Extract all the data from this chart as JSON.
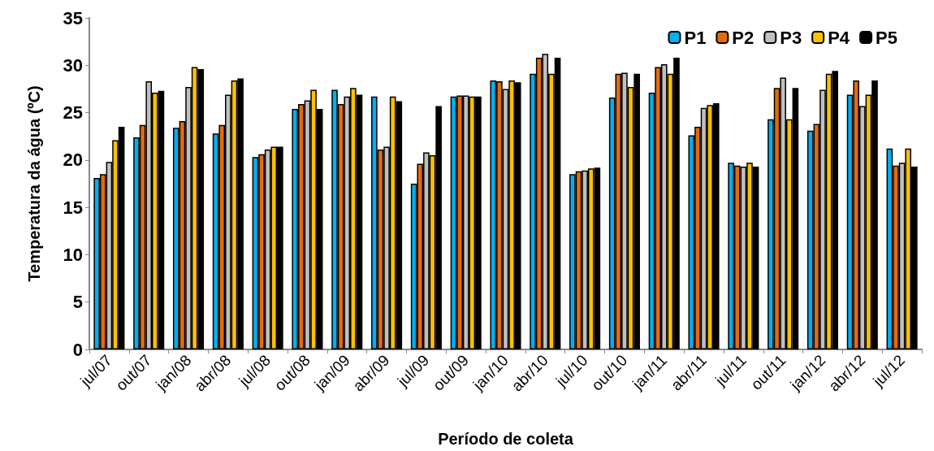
{
  "chart_data": {
    "type": "bar",
    "xlabel": "Período de coleta",
    "ylabel": "Temperatura da água (ºC)",
    "categories": [
      "jul/07",
      "out/07",
      "jan/08",
      "abr/08",
      "jul/08",
      "out/08",
      "jan/09",
      "abr/09",
      "jul/09",
      "out/09",
      "jan/10",
      "abr/10",
      "jul/10",
      "out/10",
      "jan/11",
      "abr/11",
      "jul/11",
      "out/11",
      "jan/12",
      "abr/12",
      "jul/12"
    ],
    "series": [
      {
        "name": "P1",
        "color": "#00b0f0",
        "values": [
          18.1,
          22.4,
          23.4,
          22.8,
          20.3,
          25.4,
          27.4,
          26.7,
          17.5,
          26.7,
          28.4,
          29.1,
          18.5,
          26.6,
          27.1,
          22.6,
          19.7,
          24.3,
          23.1,
          26.9,
          21.2
        ]
      },
      {
        "name": "P2",
        "color": "#e36c09",
        "values": [
          18.5,
          23.7,
          24.1,
          23.7,
          20.6,
          25.9,
          25.9,
          21.1,
          19.6,
          26.8,
          28.3,
          30.8,
          18.8,
          29.1,
          29.8,
          23.5,
          19.4,
          27.6,
          23.8,
          28.4,
          19.4
        ]
      },
      {
        "name": "P3",
        "color": "#c0c0c0",
        "values": [
          19.8,
          28.3,
          27.7,
          26.9,
          21.1,
          26.3,
          26.7,
          21.4,
          20.8,
          26.8,
          27.5,
          31.2,
          18.9,
          29.2,
          30.1,
          25.5,
          19.3,
          28.7,
          27.4,
          25.7,
          19.7
        ]
      },
      {
        "name": "P4",
        "color": "#ffc000",
        "values": [
          22.1,
          27.1,
          29.8,
          28.4,
          21.4,
          27.4,
          27.6,
          26.7,
          20.5,
          26.7,
          28.4,
          29.1,
          19.1,
          27.7,
          29.1,
          25.8,
          19.7,
          24.3,
          29.1,
          26.9,
          21.2
        ]
      },
      {
        "name": "P5",
        "color": "#000000",
        "values": [
          23.5,
          27.3,
          29.6,
          28.6,
          21.4,
          25.4,
          26.9,
          26.2,
          25.7,
          26.7,
          28.2,
          30.8,
          19.2,
          29.1,
          30.8,
          26.0,
          19.3,
          27.6,
          29.4,
          28.4,
          19.3
        ]
      }
    ],
    "ylim": [
      0,
      35
    ],
    "yticks": [
      0,
      5,
      10,
      15,
      20,
      25,
      30,
      35
    ],
    "grid": false,
    "legend": "top right"
  }
}
